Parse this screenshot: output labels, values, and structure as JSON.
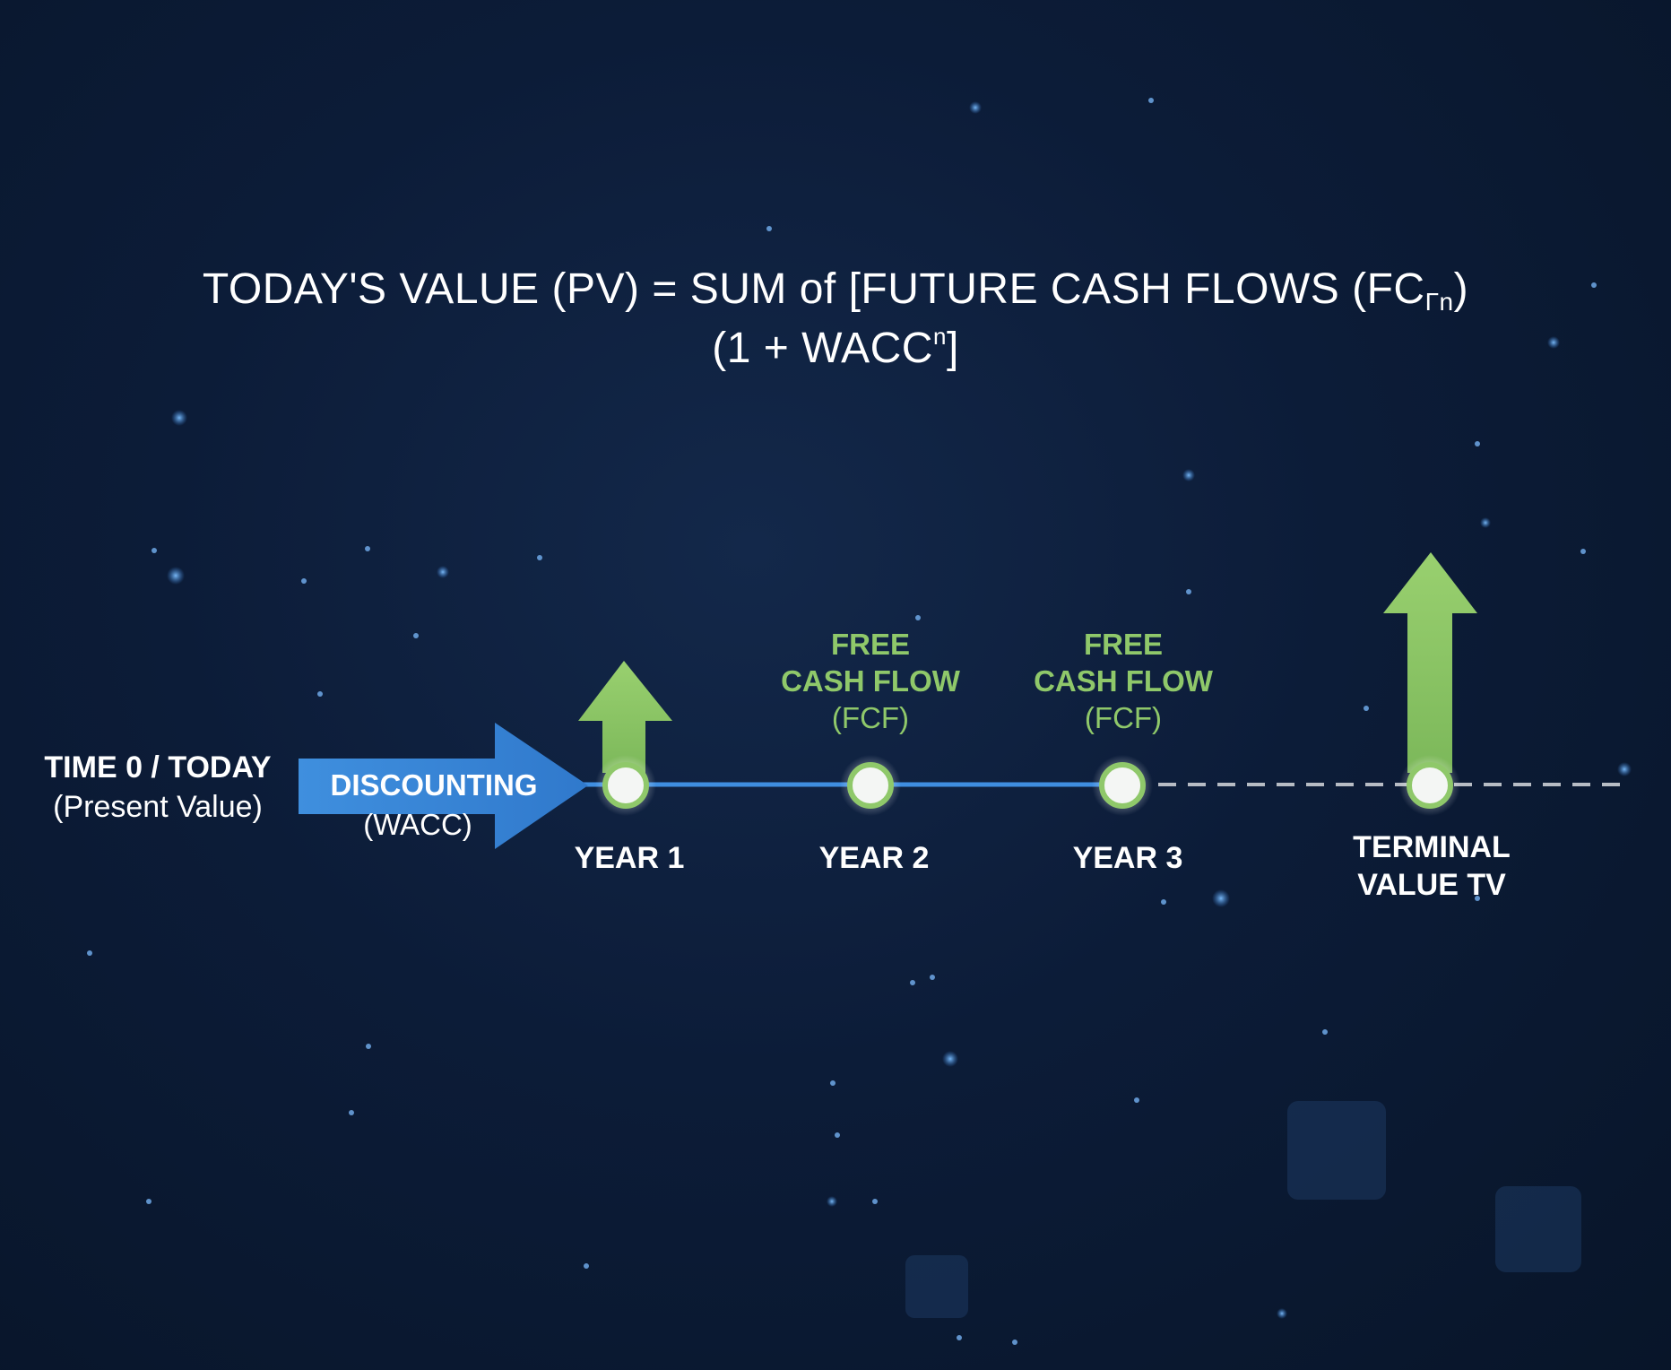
{
  "formula": {
    "line1_main": "TODAY'S VALUE (PV) = SUM of [FUTURE CASH FLOWS (FC",
    "line1_sub": "Γn",
    "line1_close": ")",
    "line2_main": "(1 + WACC",
    "line2_sup": "n",
    "line2_close": "]"
  },
  "timeline": {
    "start_label_bold": "TIME 0 / TODAY",
    "start_label_sub": "(Present Value)",
    "discount_label": "DISCOUNTING",
    "discount_rate": "(WACC)",
    "nodes": [
      {
        "label": "YEAR 1"
      },
      {
        "label": "YEAR 2",
        "fcf": [
          "FREE",
          "CASH FLOW",
          "(FCF)"
        ]
      },
      {
        "label": "YEAR 3",
        "fcf": [
          "FREE",
          "CASH FLOW",
          "(FCF)"
        ]
      }
    ],
    "terminal": [
      "TERMINAL",
      "VALUE TV"
    ]
  },
  "colors": {
    "line": "#3f8ee0",
    "arrow_blue": "#3b87d6",
    "green": "#8fc86a",
    "node_fill": "#f4f6f4",
    "dashed": "#b7bcc4"
  }
}
